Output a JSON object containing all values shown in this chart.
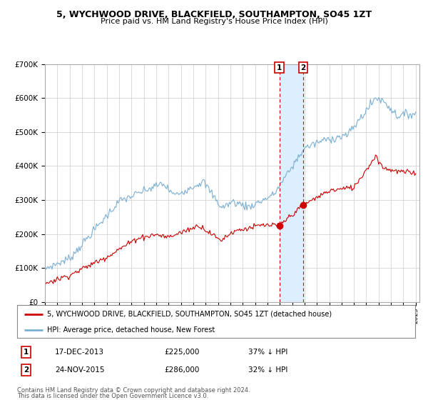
{
  "title1": "5, WYCHWOOD DRIVE, BLACKFIELD, SOUTHAMPTON, SO45 1ZT",
  "title2": "Price paid vs. HM Land Registry's House Price Index (HPI)",
  "legend_label_red": "5, WYCHWOOD DRIVE, BLACKFIELD, SOUTHAMPTON, SO45 1ZT (detached house)",
  "legend_label_blue": "HPI: Average price, detached house, New Forest",
  "transaction1_label": "1",
  "transaction1_date": "17-DEC-2013",
  "transaction1_price": 225000,
  "transaction1_text": "37% ↓ HPI",
  "transaction2_label": "2",
  "transaction2_date": "24-NOV-2015",
  "transaction2_price": 286000,
  "transaction2_text": "32% ↓ HPI",
  "footer1": "Contains HM Land Registry data © Crown copyright and database right 2024.",
  "footer2": "This data is licensed under the Open Government Licence v3.0.",
  "ylim": [
    0,
    700000
  ],
  "ylabel_ticks": [
    0,
    100000,
    200000,
    300000,
    400000,
    500000,
    600000,
    700000
  ],
  "ylabel_labels": [
    "£0",
    "£100K",
    "£200K",
    "£300K",
    "£400K",
    "£500K",
    "£600K",
    "£700K"
  ],
  "hpi_color": "#7bafd4",
  "price_color": "#cc0000",
  "bg_color": "#ffffff",
  "grid_color": "#cccccc",
  "highlight_color": "#ddeeff",
  "transaction1_x": 2013.96,
  "transaction2_x": 2015.9,
  "xmin": 1995,
  "xmax": 2025.3
}
